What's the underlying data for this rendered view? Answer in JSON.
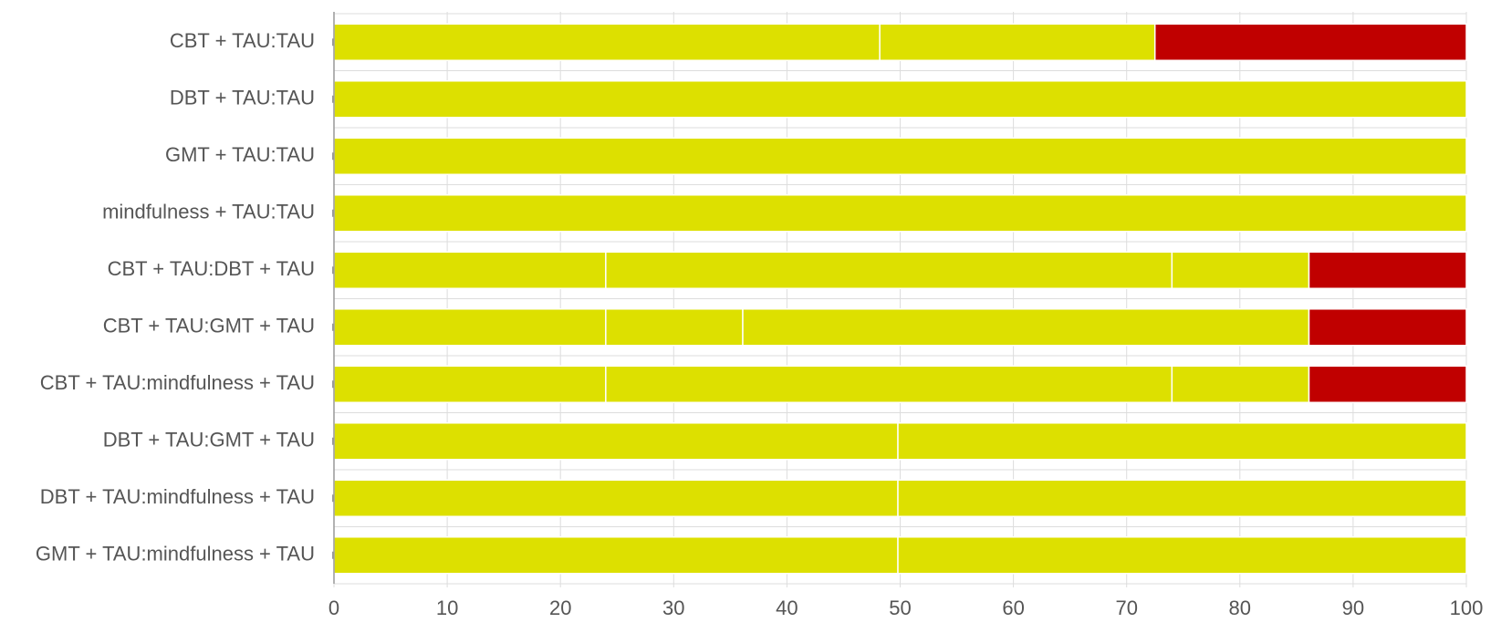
{
  "chart_data": {
    "type": "bar",
    "orientation": "horizontal",
    "stacked": true,
    "categories": [
      "CBT + TAU:TAU",
      "DBT + TAU:TAU",
      "GMT + TAU:TAU",
      "mindfulness + TAU:TAU",
      "CBT + TAU:DBT + TAU",
      "CBT + TAU:GMT + TAU",
      "CBT + TAU:mindfulness + TAU",
      "DBT + TAU:GMT + TAU",
      "DBT + TAU:mindfulness + TAU",
      "GMT + TAU:mindfulness + TAU"
    ],
    "segments": [
      [
        {
          "value": 48.2,
          "color": "#dde000"
        },
        {
          "value": 24.3,
          "color": "#dde000"
        },
        {
          "value": 27.5,
          "color": "#c00000"
        }
      ],
      [
        {
          "value": 100,
          "color": "#dde000"
        }
      ],
      [
        {
          "value": 100,
          "color": "#dde000"
        }
      ],
      [
        {
          "value": 100,
          "color": "#dde000"
        }
      ],
      [
        {
          "value": 24,
          "color": "#dde000"
        },
        {
          "value": 50,
          "color": "#dde000"
        },
        {
          "value": 12.1,
          "color": "#dde000"
        },
        {
          "value": 13.9,
          "color": "#c00000"
        }
      ],
      [
        {
          "value": 24,
          "color": "#dde000"
        },
        {
          "value": 12.1,
          "color": "#dde000"
        },
        {
          "value": 50,
          "color": "#dde000"
        },
        {
          "value": 13.9,
          "color": "#c00000"
        }
      ],
      [
        {
          "value": 24,
          "color": "#dde000"
        },
        {
          "value": 50,
          "color": "#dde000"
        },
        {
          "value": 12.1,
          "color": "#dde000"
        },
        {
          "value": 13.9,
          "color": "#c00000"
        }
      ],
      [
        {
          "value": 49.8,
          "color": "#dde000"
        },
        {
          "value": 50.2,
          "color": "#dde000"
        }
      ],
      [
        {
          "value": 49.8,
          "color": "#dde000"
        },
        {
          "value": 50.2,
          "color": "#dde000"
        }
      ],
      [
        {
          "value": 49.8,
          "color": "#dde000"
        },
        {
          "value": 50.2,
          "color": "#dde000"
        }
      ]
    ],
    "xlim": [
      0,
      100
    ],
    "xticks": [
      "0",
      "10",
      "20",
      "30",
      "40",
      "50",
      "60",
      "70",
      "80",
      "90",
      "100"
    ],
    "grid": true,
    "legend": "none",
    "colors": {
      "yellow": "#dde000",
      "red": "#c00000",
      "grid": "#dddddd",
      "axis": "#999999",
      "text": "#555555"
    }
  }
}
